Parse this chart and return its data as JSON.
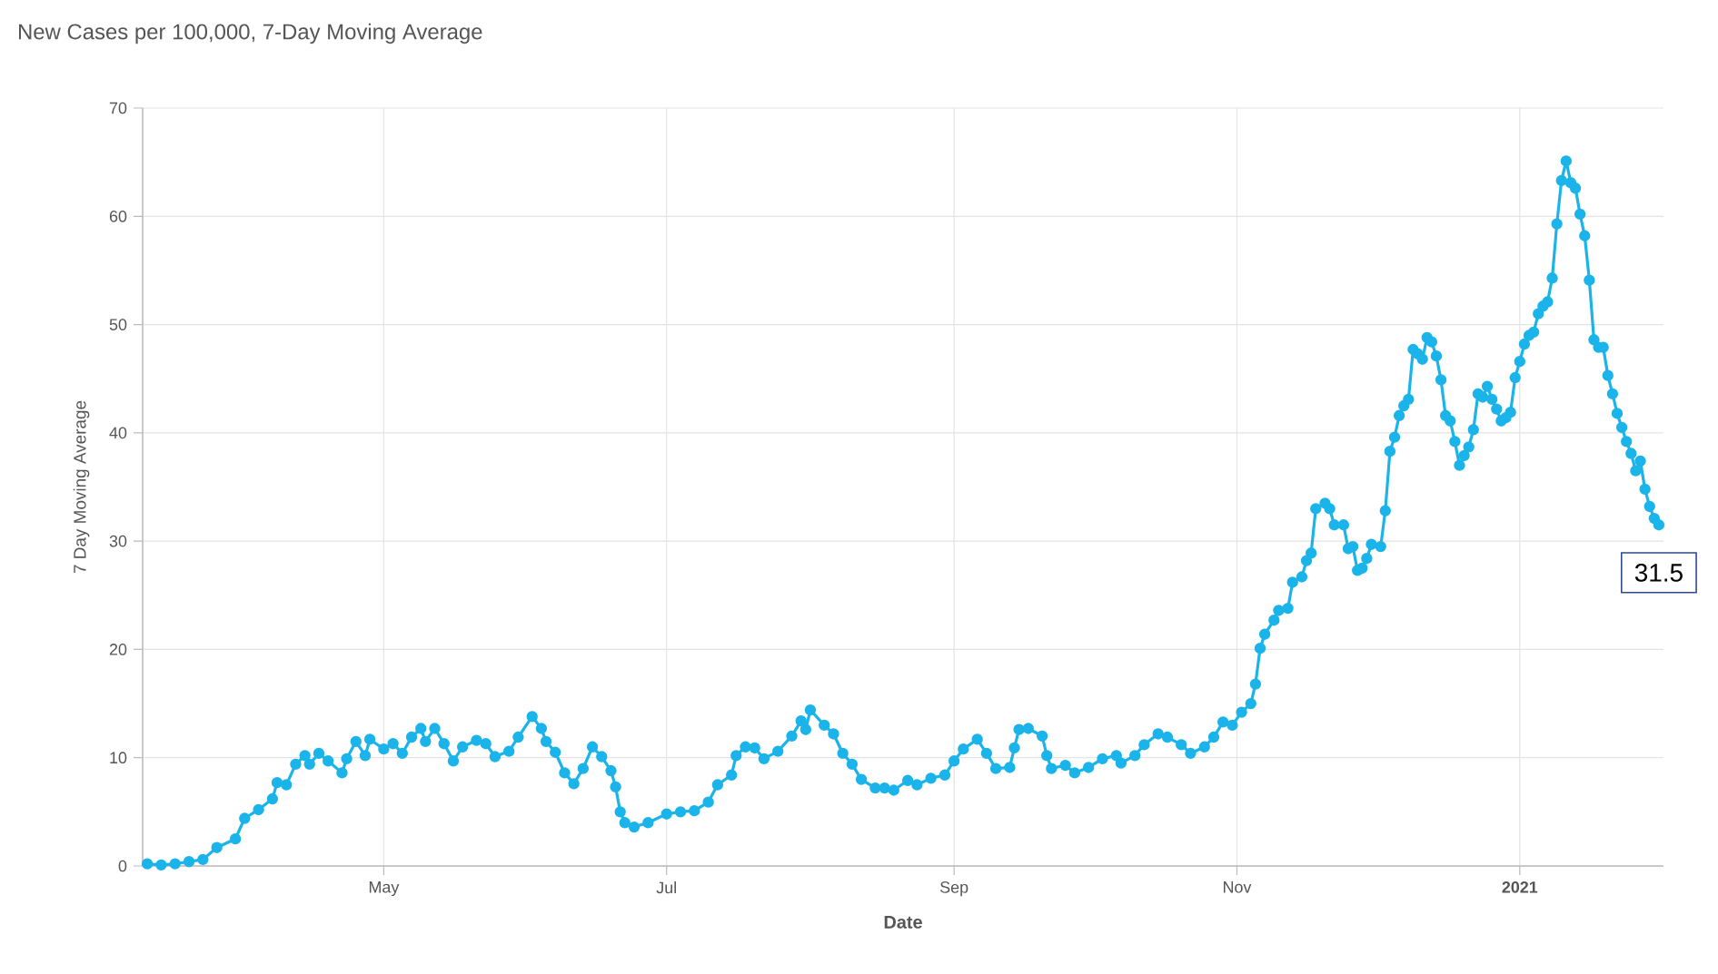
{
  "chart_data": {
    "type": "line",
    "title": "New Cases per 100,000, 7-Day Moving Average",
    "xlabel": "Date",
    "ylabel": "7 Day Moving Average",
    "xlim": [
      "2020-03-10",
      "2021-02-01"
    ],
    "xticks": [
      {
        "value": "2020-05-01",
        "label": "May"
      },
      {
        "value": "2020-07-01",
        "label": "Jul"
      },
      {
        "value": "2020-09-01",
        "label": "Sep"
      },
      {
        "value": "2020-11-01",
        "label": "Nov"
      },
      {
        "value": "2021-01-01",
        "label": "**2021**"
      }
    ],
    "ylim": [
      0,
      70
    ],
    "yticks": [
      0,
      10,
      20,
      30,
      40,
      50,
      60,
      70
    ],
    "grid": true,
    "marker": "circle",
    "line_style": "solid",
    "annotations": [
      {
        "text": "31.5",
        "x": "2021-01-31",
        "y": 31.5
      }
    ],
    "series": [
      {
        "color": "#1ab4ea",
        "x": [
          "2020-03-11",
          "2020-03-14",
          "2020-03-17",
          "2020-03-20",
          "2020-03-23",
          "2020-03-26",
          "2020-03-30",
          "2020-04-01",
          "2020-04-04",
          "2020-04-07",
          "2020-04-08",
          "2020-04-10",
          "2020-04-12",
          "2020-04-14",
          "2020-04-15",
          "2020-04-17",
          "2020-04-19",
          "2020-04-22",
          "2020-04-23",
          "2020-04-25",
          "2020-04-27",
          "2020-04-28",
          "2020-05-01",
          "2020-05-03",
          "2020-05-05",
          "2020-05-07",
          "2020-05-09",
          "2020-05-10",
          "2020-05-12",
          "2020-05-14",
          "2020-05-16",
          "2020-05-18",
          "2020-05-21",
          "2020-05-23",
          "2020-05-25",
          "2020-05-28",
          "2020-05-30",
          "2020-06-02",
          "2020-06-04",
          "2020-06-05",
          "2020-06-07",
          "2020-06-09",
          "2020-06-11",
          "2020-06-13",
          "2020-06-15",
          "2020-06-17",
          "2020-06-19",
          "2020-06-20",
          "2020-06-21",
          "2020-06-22",
          "2020-06-24",
          "2020-06-27",
          "2020-07-01",
          "2020-07-04",
          "2020-07-07",
          "2020-07-10",
          "2020-07-12",
          "2020-07-15",
          "2020-07-16",
          "2020-07-18",
          "2020-07-20",
          "2020-07-22",
          "2020-07-25",
          "2020-07-28",
          "2020-07-30",
          "2020-07-31",
          "2020-08-01",
          "2020-08-04",
          "2020-08-06",
          "2020-08-08",
          "2020-08-10",
          "2020-08-12",
          "2020-08-15",
          "2020-08-17",
          "2020-08-19",
          "2020-08-22",
          "2020-08-24",
          "2020-08-27",
          "2020-08-30",
          "2020-09-01",
          "2020-09-03",
          "2020-09-06",
          "2020-09-08",
          "2020-09-10",
          "2020-09-13",
          "2020-09-14",
          "2020-09-15",
          "2020-09-17",
          "2020-09-20",
          "2020-09-21",
          "2020-09-22",
          "2020-09-25",
          "2020-09-27",
          "2020-09-30",
          "2020-10-03",
          "2020-10-06",
          "2020-10-07",
          "2020-10-10",
          "2020-10-12",
          "2020-10-15",
          "2020-10-17",
          "2020-10-20",
          "2020-10-22",
          "2020-10-25",
          "2020-10-27",
          "2020-10-29",
          "2020-10-31",
          "2020-11-02",
          "2020-11-04",
          "2020-11-05",
          "2020-11-06",
          "2020-11-07",
          "2020-11-09",
          "2020-11-10",
          "2020-11-12",
          "2020-11-13",
          "2020-11-15",
          "2020-11-16",
          "2020-11-17",
          "2020-11-18",
          "2020-11-20",
          "2020-11-21",
          "2020-11-22",
          "2020-11-24",
          "2020-11-25",
          "2020-11-26",
          "2020-11-27",
          "2020-11-28",
          "2020-11-29",
          "2020-11-30",
          "2020-12-02",
          "2020-12-03",
          "2020-12-04",
          "2020-12-05",
          "2020-12-06",
          "2020-12-07",
          "2020-12-08",
          "2020-12-09",
          "2020-12-10",
          "2020-12-11",
          "2020-12-12",
          "2020-12-13",
          "2020-12-14",
          "2020-12-15",
          "2020-12-16",
          "2020-12-17",
          "2020-12-18",
          "2020-12-19",
          "2020-12-20",
          "2020-12-21",
          "2020-12-22",
          "2020-12-23",
          "2020-12-24",
          "2020-12-25",
          "2020-12-26",
          "2020-12-27",
          "2020-12-28",
          "2020-12-29",
          "2020-12-30",
          "2020-12-31",
          "2021-01-01",
          "2021-01-02",
          "2021-01-03",
          "2021-01-04",
          "2021-01-05",
          "2021-01-06",
          "2021-01-07",
          "2021-01-08",
          "2021-01-09",
          "2021-01-10",
          "2021-01-11",
          "2021-01-12",
          "2021-01-13",
          "2021-01-14",
          "2021-01-15",
          "2021-01-16",
          "2021-01-17",
          "2021-01-18",
          "2021-01-19",
          "2021-01-20",
          "2021-01-21",
          "2021-01-22",
          "2021-01-23",
          "2021-01-24",
          "2021-01-25",
          "2021-01-26",
          "2021-01-27",
          "2021-01-28",
          "2021-01-29",
          "2021-01-30",
          "2021-01-31"
        ],
        "values": [
          0.2,
          0.1,
          0.2,
          0.4,
          0.6,
          1.7,
          2.5,
          4.4,
          5.2,
          6.2,
          7.7,
          7.5,
          9.4,
          10.2,
          9.4,
          10.4,
          9.7,
          8.6,
          9.9,
          11.5,
          10.2,
          11.7,
          10.8,
          11.3,
          10.4,
          11.9,
          12.7,
          11.5,
          12.7,
          11.3,
          9.7,
          11.0,
          11.6,
          11.3,
          10.1,
          10.6,
          11.9,
          13.8,
          12.7,
          11.5,
          10.5,
          8.6,
          7.6,
          9.0,
          11.0,
          10.1,
          8.8,
          7.3,
          5.0,
          4.0,
          3.6,
          4.0,
          4.8,
          5.0,
          5.1,
          5.9,
          7.5,
          8.4,
          10.2,
          11.0,
          10.9,
          9.9,
          10.6,
          12.0,
          13.4,
          12.6,
          14.4,
          13.0,
          12.2,
          10.4,
          9.4,
          8.0,
          7.2,
          7.2,
          7.0,
          7.9,
          7.5,
          8.1,
          8.4,
          9.7,
          10.8,
          11.7,
          10.4,
          9.0,
          9.1,
          10.9,
          12.6,
          12.7,
          12.0,
          10.2,
          9.0,
          9.3,
          8.6,
          9.1,
          9.9,
          10.2,
          9.5,
          10.2,
          11.2,
          12.2,
          11.9,
          11.2,
          10.4,
          11.0,
          11.9,
          13.3,
          13.0,
          14.2,
          15.0,
          16.8,
          20.1,
          21.4,
          22.7,
          23.6,
          23.8,
          26.2,
          26.7,
          28.2,
          28.9,
          33.0,
          33.5,
          33.0,
          31.5,
          31.5,
          29.3,
          29.5,
          27.3,
          27.5,
          28.4,
          29.7,
          29.5,
          32.8,
          38.3,
          39.6,
          41.6,
          42.5,
          43.1,
          47.7,
          47.3,
          46.8,
          48.8,
          48.4,
          47.1,
          44.9,
          41.6,
          41.1,
          39.2,
          37.0,
          37.9,
          38.7,
          40.3,
          43.6,
          43.3,
          44.3,
          43.1,
          42.2,
          41.1,
          41.4,
          41.9,
          45.1,
          46.6,
          48.2,
          49.0,
          49.3,
          51.0,
          51.7,
          52.1,
          54.3,
          59.3,
          63.3,
          65.1,
          63.1,
          62.6,
          60.2,
          58.2,
          54.1,
          48.6,
          47.9,
          47.9,
          45.3,
          43.6,
          41.8,
          40.5,
          39.2,
          38.1,
          36.5,
          37.4,
          34.8,
          33.2,
          32.1,
          31.5
        ]
      }
    ]
  }
}
